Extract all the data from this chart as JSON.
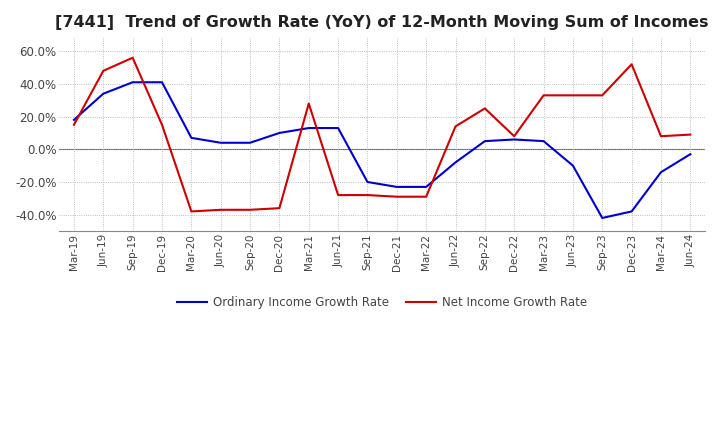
{
  "title": "[7441]  Trend of Growth Rate (YoY) of 12-Month Moving Sum of Incomes",
  "title_fontsize": 11.5,
  "x_labels": [
    "Mar-19",
    "Jun-19",
    "Sep-19",
    "Dec-19",
    "Mar-20",
    "Jun-20",
    "Sep-20",
    "Dec-20",
    "Mar-21",
    "Jun-21",
    "Sep-21",
    "Dec-21",
    "Mar-22",
    "Jun-22",
    "Sep-22",
    "Dec-22",
    "Mar-23",
    "Jun-23",
    "Sep-23",
    "Dec-23",
    "Mar-24",
    "Jun-24"
  ],
  "ordinary_income": [
    0.18,
    0.34,
    0.41,
    0.41,
    0.07,
    0.04,
    0.04,
    0.1,
    0.13,
    0.13,
    -0.2,
    -0.23,
    -0.23,
    -0.08,
    0.05,
    0.06,
    0.05,
    -0.1,
    -0.42,
    -0.38,
    -0.14,
    -0.03
  ],
  "net_income": [
    0.15,
    0.48,
    0.56,
    0.15,
    -0.38,
    -0.37,
    -0.37,
    -0.36,
    0.28,
    -0.28,
    -0.28,
    -0.29,
    -0.29,
    0.14,
    0.25,
    0.08,
    0.33,
    0.33,
    0.33,
    0.52,
    0.08,
    0.09
  ],
  "ylim": [
    -0.5,
    0.68
  ],
  "yticks": [
    -0.4,
    -0.2,
    0.0,
    0.2,
    0.4,
    0.6
  ],
  "ytick_labels": [
    "-40.0%",
    "-20.0%",
    "0.0%",
    "20.0%",
    "40.0%",
    "60.0%"
  ],
  "ordinary_color": "#0000CC",
  "net_color": "#CC0000",
  "background_color": "#FFFFFF",
  "grid_color": "#AAAAAA",
  "legend_ordinary": "Ordinary Income Growth Rate",
  "legend_net": "Net Income Growth Rate"
}
